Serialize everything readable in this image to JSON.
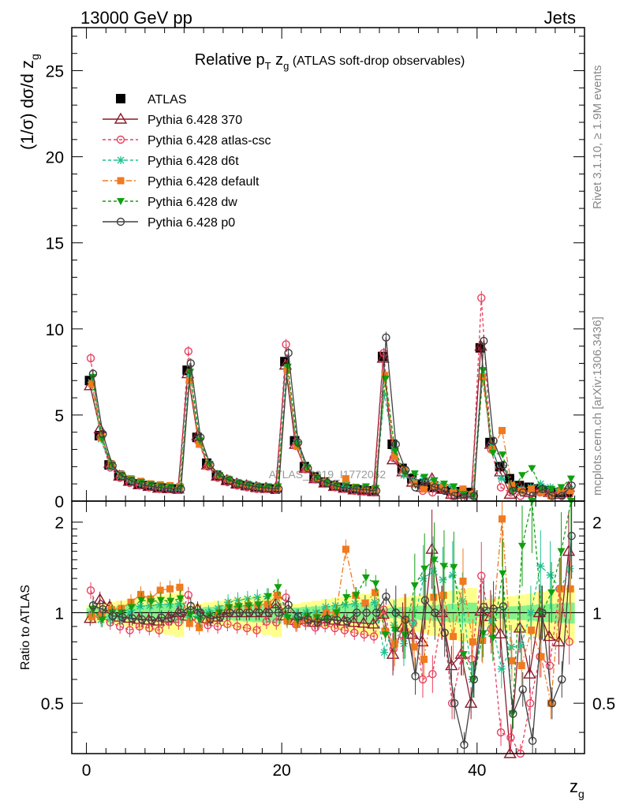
{
  "header": {
    "left": "13000 GeV pp",
    "right": "Jets"
  },
  "side": {
    "rivet": "Rivet 3.1.10, ≥ 1.9M events",
    "mcplots": "mcplots.cern.ch [arXiv:1306.3436]"
  },
  "watermark": "ATLAS_2019_I1772062",
  "chart_data": [
    {
      "type": "scatter",
      "title": "Relative p_T z_g (ATLAS soft-drop observables)",
      "title_main": "Relative p",
      "title_sub_T": "T",
      "title_zg": " z",
      "title_sub_g": "g",
      "title_rest": " (ATLAS soft-drop observables)",
      "ylabel": "(1/σ) dσ/d z_g",
      "xlabel": "z_g",
      "xlim": [
        -1.5,
        51
      ],
      "ylim": [
        0,
        27.5
      ],
      "yticks": [
        "0",
        "5",
        "10",
        "15",
        "20",
        "25"
      ],
      "xticks": [
        "0",
        "20",
        "40"
      ],
      "legend_position": "top-left",
      "x": [
        0.5,
        1.5,
        2.5,
        3.5,
        4.5,
        5.5,
        6.5,
        7.5,
        8.5,
        9.5,
        10.5,
        11.5,
        12.5,
        13.5,
        14.5,
        15.5,
        16.5,
        17.5,
        18.5,
        19.5,
        20.5,
        21.5,
        22.5,
        23.5,
        24.5,
        25.5,
        26.5,
        27.5,
        28.5,
        29.5,
        30.5,
        31.5,
        32.5,
        33.5,
        34.5,
        35.5,
        36.5,
        37.5,
        38.5,
        39.5,
        40.5,
        41.5,
        42.5,
        43.5,
        44.5,
        45.5,
        46.5,
        47.5,
        48.5,
        49.5
      ],
      "series": [
        {
          "name": "ATLAS",
          "color": "#000000",
          "values": [
            7.0,
            3.8,
            2.1,
            1.5,
            1.2,
            1.0,
            0.9,
            0.8,
            0.75,
            0.7,
            7.6,
            3.7,
            2.2,
            1.5,
            1.2,
            1.0,
            0.9,
            0.8,
            0.75,
            0.7,
            8.1,
            3.5,
            2.0,
            1.4,
            1.1,
            0.9,
            0.8,
            0.7,
            0.65,
            0.6,
            8.4,
            3.3,
            1.9,
            1.3,
            1.0,
            0.8,
            0.7,
            0.6,
            0.55,
            0.5,
            8.9,
            3.4,
            2.0,
            1.3,
            0.9,
            0.8,
            0.7,
            0.6,
            0.5,
            0.5
          ]
        },
        {
          "name": "Pythia 6.428 370",
          "color": "#8b1a2a",
          "values": [
            6.7,
            4.2,
            2.2,
            1.45,
            1.15,
            0.95,
            0.85,
            0.75,
            0.72,
            0.7,
            7.4,
            3.8,
            2.1,
            1.45,
            1.2,
            1.0,
            0.9,
            0.8,
            0.75,
            0.75,
            7.9,
            3.3,
            1.9,
            1.3,
            1.05,
            0.85,
            0.75,
            0.65,
            0.6,
            0.55,
            8.3,
            2.4,
            1.7,
            1.1,
            0.8,
            1.3,
            0.7,
            0.4,
            0.4,
            0.25,
            9.0,
            3.3,
            1.7,
            0.4,
            0.8,
            0.5,
            0.7,
            0.5,
            0.4,
            0.8
          ]
        },
        {
          "name": "Pythia 6.428 atlas-csc",
          "color": "#e8405f",
          "values": [
            8.3,
            3.7,
            1.95,
            1.35,
            1.05,
            0.9,
            0.8,
            0.7,
            0.7,
            0.65,
            8.7,
            3.5,
            2.0,
            1.35,
            1.1,
            0.9,
            0.8,
            0.7,
            0.7,
            0.65,
            9.1,
            3.2,
            1.85,
            1.25,
            1.0,
            0.8,
            0.7,
            0.6,
            0.55,
            0.5,
            8.6,
            2.5,
            1.6,
            1.2,
            0.6,
            0.5,
            0.7,
            0.3,
            0.4,
            0.35,
            11.8,
            3.0,
            0.8,
            0.5,
            0.3,
            0.4,
            0.5,
            0.4,
            0.6,
            0.4
          ]
        },
        {
          "name": "Pythia 6.428 d6t",
          "color": "#20c090",
          "values": [
            6.9,
            3.6,
            2.0,
            1.45,
            1.2,
            1.05,
            0.95,
            0.85,
            0.8,
            0.75,
            7.3,
            3.6,
            2.2,
            1.55,
            1.3,
            1.1,
            1.0,
            0.9,
            0.85,
            0.8,
            7.7,
            3.4,
            2.0,
            1.4,
            1.15,
            0.95,
            0.85,
            0.75,
            0.7,
            0.65,
            6.2,
            3.0,
            1.5,
            1.2,
            1.3,
            1.1,
            0.9,
            0.8,
            0.6,
            0.3,
            7.3,
            3.2,
            1.3,
            1.0,
            0.7,
            0.8,
            1.0,
            0.8,
            0.6,
            0.7
          ]
        },
        {
          "name": "Pythia 6.428 default",
          "color": "#f07a20",
          "values": [
            6.8,
            3.7,
            2.15,
            1.55,
            1.3,
            1.15,
            1.0,
            0.95,
            0.9,
            0.85,
            7.0,
            3.3,
            2.1,
            1.5,
            1.25,
            1.05,
            0.95,
            0.85,
            0.8,
            0.8,
            7.6,
            3.2,
            1.9,
            1.35,
            1.1,
            0.9,
            1.3,
            0.8,
            0.7,
            0.7,
            7.3,
            2.6,
            1.8,
            1.0,
            0.7,
            0.9,
            0.8,
            0.5,
            0.7,
            0.4,
            7.2,
            3.0,
            4.1,
            0.9,
            0.6,
            0.7,
            0.5,
            0.3,
            0.6,
            0.6
          ]
        },
        {
          "name": "Pythia 6.428 dw",
          "color": "#10a010",
          "values": [
            7.2,
            3.6,
            2.1,
            1.5,
            1.25,
            1.1,
            0.98,
            0.88,
            0.82,
            0.78,
            7.5,
            3.5,
            2.15,
            1.5,
            1.25,
            1.05,
            0.95,
            0.85,
            0.85,
            0.85,
            7.8,
            3.3,
            1.95,
            1.35,
            1.05,
            0.9,
            0.9,
            0.8,
            0.85,
            0.75,
            7.1,
            2.9,
            1.6,
            1.6,
            1.4,
            1.2,
            1.0,
            0.85,
            0.4,
            0.3,
            7.6,
            2.8,
            2.7,
            0.6,
            1.5,
            1.9,
            0.7,
            0.7,
            0.8,
            1.3
          ]
        },
        {
          "name": "Pythia 6.428 p0",
          "color": "#404040",
          "values": [
            7.4,
            3.9,
            2.05,
            1.45,
            1.15,
            0.95,
            0.85,
            0.77,
            0.72,
            0.7,
            8.0,
            3.7,
            2.1,
            1.45,
            1.2,
            1.0,
            0.9,
            0.8,
            0.75,
            0.7,
            8.6,
            3.4,
            1.9,
            1.3,
            1.05,
            0.85,
            0.75,
            0.7,
            0.65,
            0.6,
            9.5,
            3.3,
            1.8,
            0.8,
            1.1,
            0.8,
            0.6,
            0.3,
            0.2,
            0.3,
            9.3,
            3.5,
            2.1,
            0.6,
            0.5,
            0.3,
            0.7,
            0.3,
            0.3,
            0.9
          ]
        }
      ]
    },
    {
      "type": "scatter",
      "title": "",
      "ylabel": "Ratio to ATLAS",
      "xlabel": "z_g",
      "xlim": [
        -1.5,
        51
      ],
      "ylim": [
        0.34,
        2.35
      ],
      "yticks_log": true,
      "yticks": [
        "0.5",
        "1",
        "2"
      ],
      "xticks": [
        "0",
        "20",
        "40"
      ],
      "band": "MC uncertainty (green) and data uncertainty (yellow) around 1",
      "series_ratio_note": "Each series ratio = series / ATLAS"
    }
  ]
}
